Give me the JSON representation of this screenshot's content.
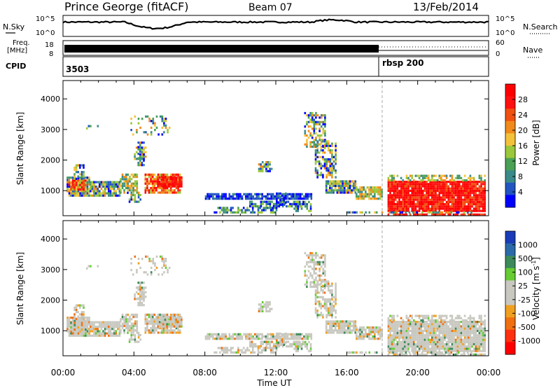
{
  "header": {
    "station": "Prince George (fitACF)",
    "beam": "Beam 07",
    "date": "13/Feb/2014"
  },
  "panels": {
    "nsky_label": "N.Sky",
    "nsky_ticks": [
      "10^5",
      "10^0"
    ],
    "nsearch_label": "N.Search",
    "nsearch_ticks": [
      "10^5",
      "10^0"
    ],
    "freq_label": "Freq.",
    "freq_unit": "[MHz]",
    "freq_ticks": [
      "18",
      "8"
    ],
    "nave_label": "Nave",
    "nave_ticks": [
      "60",
      "0"
    ],
    "cpid_label": "CPID",
    "cpid_values": [
      "3503",
      "rbsp 200"
    ]
  },
  "colors": {
    "power": [
      "#0000ff",
      "#2255c0",
      "#3a8a8a",
      "#4aa055",
      "#9ac83a",
      "#f4c23a",
      "#f08a1a",
      "#f05010",
      "#ff1010",
      "#ff0000"
    ],
    "velocity": [
      "#1a3cb8",
      "#2a6aa8",
      "#3c8a5a",
      "#66cc33",
      "#c8c8c0",
      "#c8c8c0",
      "#f0a020",
      "#f07010",
      "#ff3010",
      "#ff0000"
    ],
    "gray": "#c8c8c0"
  },
  "chart_data": [
    {
      "type": "heatmap",
      "name": "power",
      "xlabel": "Time UT",
      "ylabel": "Slant Range [km]",
      "xlim": [
        0,
        24
      ],
      "ylim": [
        180,
        4600
      ],
      "x_ticks": [
        "00:00",
        "04:00",
        "08:00",
        "12:00",
        "16:00",
        "20:00",
        "00:00"
      ],
      "y_ticks": [
        1000,
        2000,
        3000,
        4000
      ],
      "colorbar_label": "Power [dB]",
      "colorbar_ticks": [
        "28",
        "24",
        "20",
        "16",
        "12",
        "8",
        "4"
      ],
      "mode_change_time": 18.0
    },
    {
      "type": "heatmap",
      "name": "velocity",
      "xlabel": "Time UT",
      "ylabel": "Slant Range [km]",
      "xlim": [
        0,
        24
      ],
      "ylim": [
        180,
        4600
      ],
      "x_ticks": [
        "00:00",
        "04:00",
        "08:00",
        "12:00",
        "16:00",
        "20:00",
        "00:00"
      ],
      "y_ticks": [
        1000,
        2000,
        3000,
        4000
      ],
      "colorbar_label": "Velocity [m s",
      "colorbar_ticks": [
        "1000",
        "500",
        "100",
        "25",
        "-25",
        "-100",
        "-500",
        "-1000"
      ],
      "mode_change_time": 18.0
    }
  ]
}
